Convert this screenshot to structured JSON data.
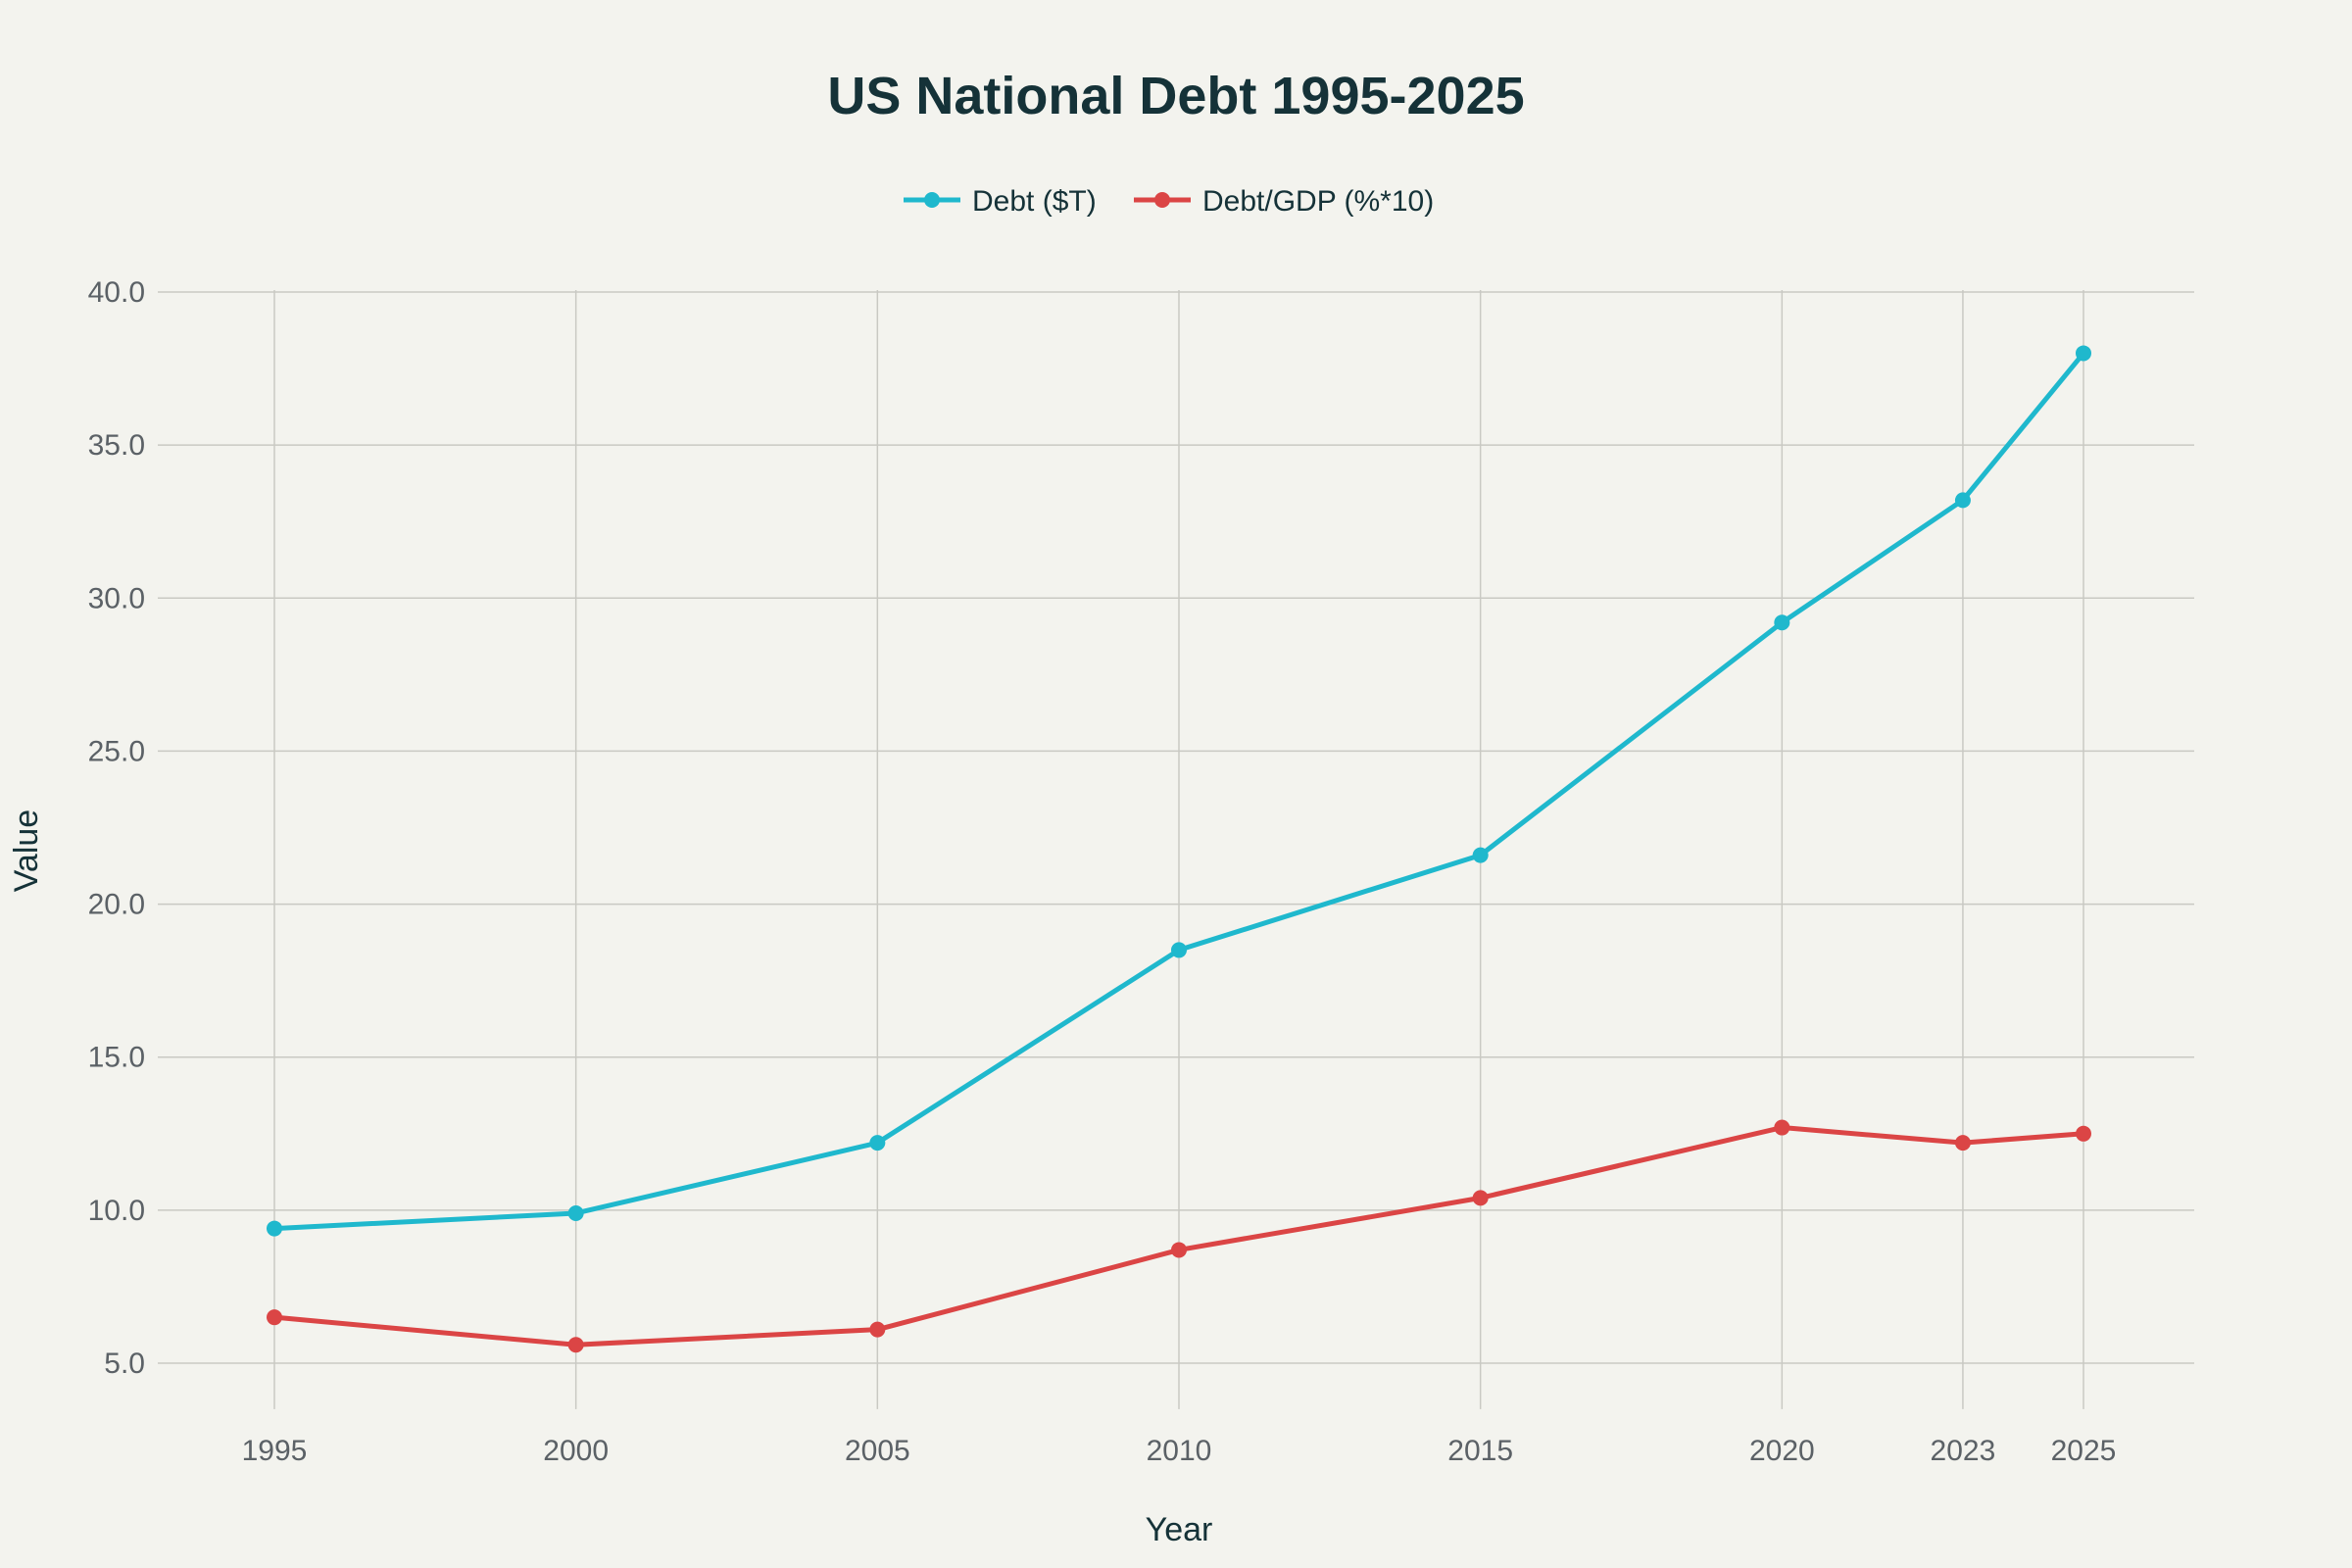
{
  "chart_data": {
    "type": "line",
    "title": "US National Debt 1995-2025",
    "xlabel": "Year",
    "ylabel": "Value",
    "x": [
      1995,
      2000,
      2005,
      2010,
      2015,
      2020,
      2023,
      2025
    ],
    "x_tick_labels": [
      "1995",
      "2000",
      "2005",
      "2010",
      "2015",
      "2020",
      "2023",
      "2025"
    ],
    "y_tick_labels": [
      "5.0",
      "10.0",
      "15.0",
      "20.0",
      "25.0",
      "30.0",
      "35.0",
      "40.0"
    ],
    "y_ticks": [
      5,
      10,
      15,
      20,
      25,
      30,
      35,
      40
    ],
    "xlim": [
      1993,
      2027
    ],
    "ylim": [
      3.5,
      40
    ],
    "grid": true,
    "legend_position": "top-center",
    "series": [
      {
        "name": "Debt ($T)",
        "color": "#1fb8cd",
        "values": [
          9.4,
          9.9,
          12.2,
          18.5,
          21.6,
          29.2,
          33.2,
          38.0
        ]
      },
      {
        "name": "Debt/GDP (%*10)",
        "color": "#db4545",
        "values": [
          6.5,
          5.6,
          6.1,
          8.7,
          10.4,
          12.7,
          12.2,
          12.5
        ]
      }
    ]
  }
}
